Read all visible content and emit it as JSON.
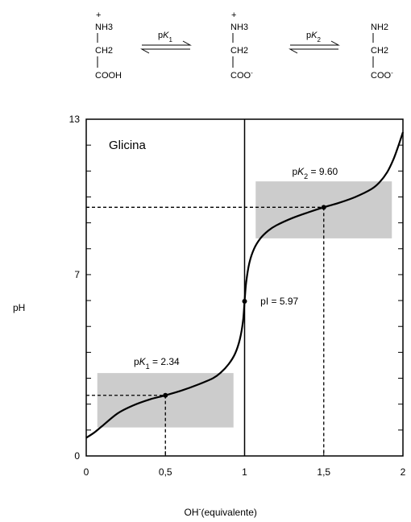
{
  "reaction": {
    "species": [
      {
        "charge_top": "+",
        "line1": "NH3",
        "line2": "CH2",
        "line3": "COOH",
        "charge_bottom": ""
      },
      {
        "charge_top": "+",
        "line1": "NH3",
        "line2": "CH2",
        "line3": "COO",
        "charge_bottom": "-"
      },
      {
        "charge_top": "",
        "line1": "NH2",
        "line2": "CH2",
        "line3": "COO",
        "charge_bottom": "-"
      }
    ],
    "equilibria": [
      {
        "p": "p",
        "k": "K",
        "sub": "1"
      },
      {
        "p": "p",
        "k": "K",
        "sub": "2"
      }
    ]
  },
  "chart_data": {
    "type": "line",
    "title": "Glicina",
    "xlabel": "OH",
    "xlabel_superscript": "-",
    "xlabel_suffix": "(equivalente)",
    "ylabel": "pH",
    "xlim": [
      0,
      2
    ],
    "ylim": [
      0,
      13
    ],
    "x_ticks": [
      {
        "value": 0,
        "label": "0"
      },
      {
        "value": 0.5,
        "label": "0,5"
      },
      {
        "value": 1,
        "label": "1"
      },
      {
        "value": 1.5,
        "label": "1,5"
      },
      {
        "value": 2,
        "label": "2"
      }
    ],
    "y_ticks": [
      {
        "value": 0,
        "label": "0"
      },
      {
        "value": 7,
        "label": "7"
      },
      {
        "value": 13,
        "label": "13"
      }
    ],
    "pK1": 2.34,
    "pK2": 9.6,
    "pI": 5.97,
    "annotations": [
      {
        "id": "pk1",
        "p": "p",
        "k": "K",
        "sub": "1",
        "text": " = 2.34"
      },
      {
        "id": "pk2",
        "p": "p",
        "k": "K",
        "sub": "2",
        "text": " = 9.60"
      },
      {
        "id": "pi",
        "text": "pI = 5.97"
      }
    ],
    "marked_points": [
      {
        "x": 0.5,
        "y": 2.34
      },
      {
        "x": 1.0,
        "y": 5.97
      },
      {
        "x": 1.5,
        "y": 9.6
      }
    ],
    "buffer_regions": [
      {
        "x": [
          0.07,
          0.93
        ],
        "y": [
          1.1,
          3.2
        ]
      },
      {
        "x": [
          1.07,
          1.93
        ],
        "y": [
          8.4,
          10.6
        ]
      }
    ],
    "vertical_line_x": 1,
    "curve": {
      "x": [
        0,
        0.05,
        0.1,
        0.2,
        0.3,
        0.4,
        0.5,
        0.6,
        0.7,
        0.8,
        0.85,
        0.9,
        0.94,
        0.97,
        0.99,
        1.0,
        1.01,
        1.03,
        1.06,
        1.1,
        1.15,
        1.2,
        1.3,
        1.4,
        1.5,
        1.6,
        1.7,
        1.8,
        1.85,
        1.9,
        1.94,
        1.97,
        2.0
      ],
      "y": [
        0.7,
        0.9,
        1.15,
        1.65,
        1.96,
        2.18,
        2.34,
        2.52,
        2.74,
        3.0,
        3.22,
        3.55,
        3.95,
        4.5,
        5.2,
        5.97,
        6.7,
        7.45,
        8.0,
        8.4,
        8.7,
        8.9,
        9.18,
        9.4,
        9.6,
        9.78,
        10.0,
        10.3,
        10.55,
        10.95,
        11.45,
        11.95,
        12.5
      ]
    }
  }
}
